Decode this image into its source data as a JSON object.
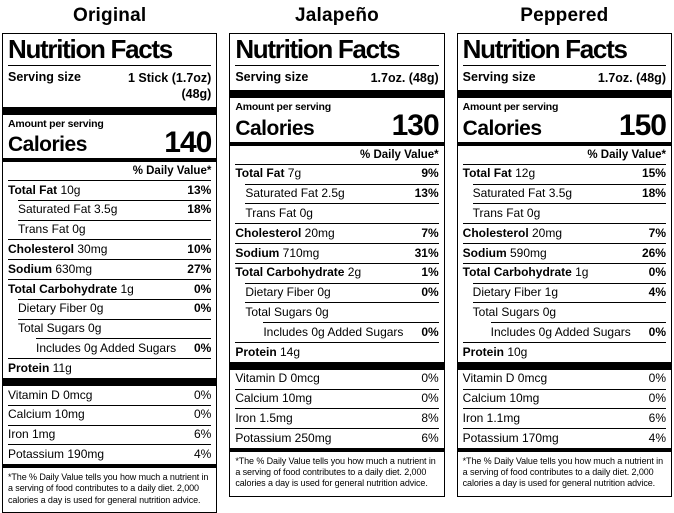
{
  "page_background": "#ffffff",
  "text_color": "#000000",
  "columns": [
    {
      "title": "Original",
      "header": "Nutrition Facts",
      "serving_label": "Serving size",
      "serving_value": "1 Stick (1.7oz)\n(48g)",
      "amount_per": "Amount per serving",
      "calories_label": "Calories",
      "calories_value": "140",
      "dv_header": "% Daily Value*",
      "rows": [
        {
          "b": "Total Fat",
          "r": " 10g",
          "pct": "13%"
        },
        {
          "b": "",
          "r": "Saturated Fat 3.5g",
          "pct": "18%"
        },
        {
          "b": "",
          "r": "Trans Fat 0g",
          "pct": ""
        },
        {
          "b": "Cholesterol",
          "r": " 30mg",
          "pct": "10%"
        },
        {
          "b": "Sodium",
          "r": " 630mg",
          "pct": "27%"
        },
        {
          "b": "Total Carbohydrate",
          "r": " 1g",
          "pct": "0%"
        },
        {
          "b": "",
          "r": "Dietary Fiber 0g",
          "pct": "0%"
        },
        {
          "b": "",
          "r": "Total Sugars 0g",
          "pct": ""
        },
        {
          "b": "",
          "r": "Includes 0g Added Sugars",
          "pct": "0%"
        },
        {
          "b": "Protein",
          "r": " 11g",
          "pct": ""
        }
      ],
      "vitamins": [
        {
          "r": "Vitamin D 0mcg",
          "pct": "0%"
        },
        {
          "r": "Calcium 10mg",
          "pct": "0%"
        },
        {
          "r": "Iron 1mg",
          "pct": "6%"
        },
        {
          "r": "Potassium 190mg",
          "pct": "4%"
        }
      ],
      "footnote": "*The % Daily Value tells you how much a nutrient in a serving of food contributes to a daily diet. 2,000 calories a day is used for general nutrition advice."
    },
    {
      "title": "Jalapeño",
      "header": "Nutrition Facts",
      "serving_label": "Serving size",
      "serving_value": "1.7oz. (48g)",
      "amount_per": "Amount per serving",
      "calories_label": "Calories",
      "calories_value": "130",
      "dv_header": "% Daily Value*",
      "rows": [
        {
          "b": "Total Fat",
          "r": " 7g",
          "pct": "9%"
        },
        {
          "b": "",
          "r": "Saturated Fat 2.5g",
          "pct": "13%"
        },
        {
          "b": "",
          "r": "Trans Fat 0g",
          "pct": ""
        },
        {
          "b": "Cholesterol",
          "r": " 20mg",
          "pct": "7%"
        },
        {
          "b": "Sodium",
          "r": " 710mg",
          "pct": "31%"
        },
        {
          "b": "Total Carbohydrate",
          "r": " 2g",
          "pct": "1%"
        },
        {
          "b": "",
          "r": "Dietary Fiber 0g",
          "pct": "0%"
        },
        {
          "b": "",
          "r": "Total Sugars 0g",
          "pct": ""
        },
        {
          "b": "",
          "r": "Includes 0g Added Sugars",
          "pct": "0%"
        },
        {
          "b": "Protein",
          "r": " 14g",
          "pct": ""
        }
      ],
      "vitamins": [
        {
          "r": "Vitamin D 0mcg",
          "pct": "0%"
        },
        {
          "r": "Calcium 10mg",
          "pct": "0%"
        },
        {
          "r": "Iron 1.5mg",
          "pct": "8%"
        },
        {
          "r": "Potassium 250mg",
          "pct": "6%"
        }
      ],
      "footnote": "*The % Daily Value tells you how much a nutrient in a serving of food contributes to a daily diet. 2,000 calories a day is used for general nutrition advice."
    },
    {
      "title": "Peppered",
      "header": "Nutrition Facts",
      "serving_label": "Serving size",
      "serving_value": "1.7oz. (48g)",
      "amount_per": "Amount per serving",
      "calories_label": "Calories",
      "calories_value": "150",
      "dv_header": "% Daily Value*",
      "rows": [
        {
          "b": "Total Fat",
          "r": " 12g",
          "pct": "15%"
        },
        {
          "b": "",
          "r": "Saturated Fat 3.5g",
          "pct": "18%"
        },
        {
          "b": "",
          "r": "Trans Fat 0g",
          "pct": ""
        },
        {
          "b": "Cholesterol",
          "r": " 20mg",
          "pct": "7%"
        },
        {
          "b": "Sodium",
          "r": " 590mg",
          "pct": "26%"
        },
        {
          "b": "Total Carbohydrate",
          "r": " 1g",
          "pct": "0%"
        },
        {
          "b": "",
          "r": "Dietary Fiber 1g",
          "pct": "4%"
        },
        {
          "b": "",
          "r": "Total Sugars 0g",
          "pct": ""
        },
        {
          "b": "",
          "r": "Includes 0g Added Sugars",
          "pct": "0%"
        },
        {
          "b": "Protein",
          "r": " 10g",
          "pct": ""
        }
      ],
      "vitamins": [
        {
          "r": "Vitamin D 0mcg",
          "pct": "0%"
        },
        {
          "r": "Calcium 10mg",
          "pct": "0%"
        },
        {
          "r": "Iron 1.1mg",
          "pct": "6%"
        },
        {
          "r": "Potassium 170mg",
          "pct": "4%"
        }
      ],
      "footnote": "*The % Daily Value tells you how much a nutrient in a serving of food contributes to a daily diet. 2,000 calories a day is used for general nutrition advice."
    }
  ]
}
